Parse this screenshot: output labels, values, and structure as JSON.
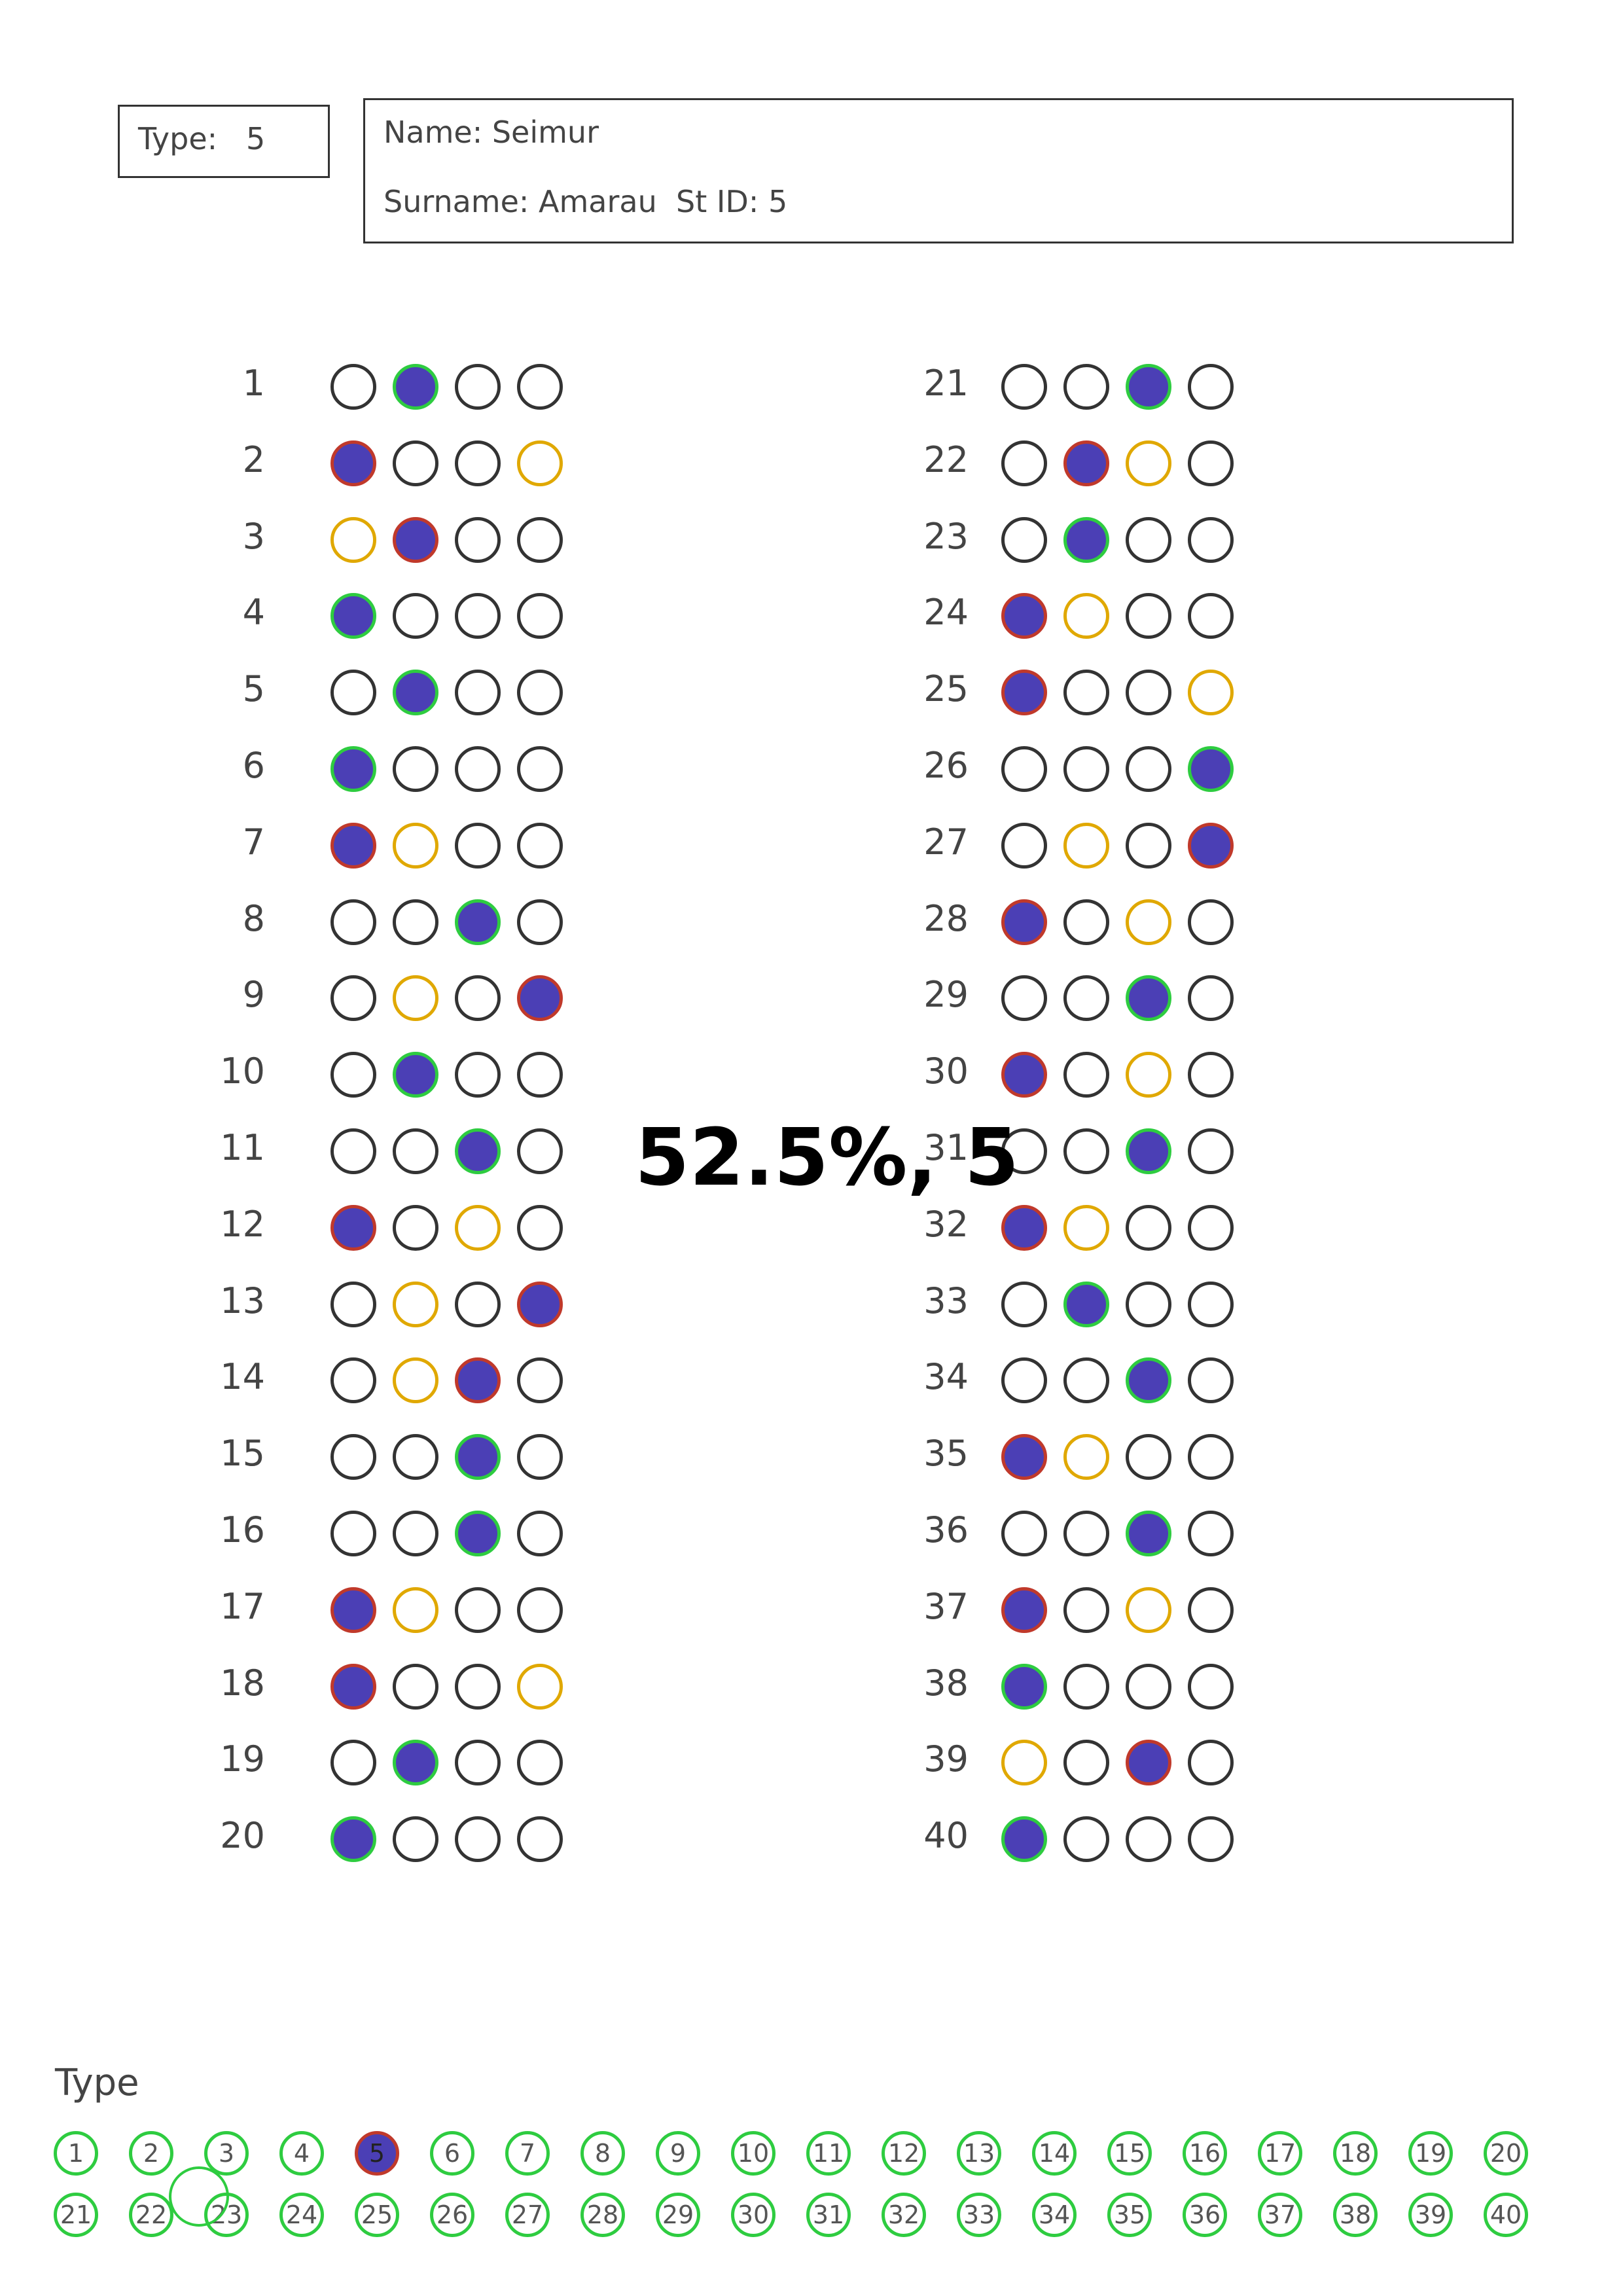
{
  "header": {
    "type_label": "Type:   5",
    "name_label": "Name: Seimur",
    "surname_label": "Surname: Amarau  St ID: 5"
  },
  "score_text": "52.5%, 5",
  "colors": {
    "fill": "#4b3fb5",
    "correct": "#2ecc40",
    "wrong": "#c0392b",
    "answer_key": "#e0a800",
    "empty": "#333333"
  },
  "questions": [
    {
      "number": "1",
      "selected": 2,
      "status": "correct"
    },
    {
      "number": "2",
      "selected": 1,
      "status": "wrong",
      "correct": 4
    },
    {
      "number": "3",
      "selected": 2,
      "status": "wrong",
      "correct": 1
    },
    {
      "number": "4",
      "selected": 1,
      "status": "correct"
    },
    {
      "number": "5",
      "selected": 2,
      "status": "correct"
    },
    {
      "number": "6",
      "selected": 1,
      "status": "correct"
    },
    {
      "number": "7",
      "selected": 1,
      "status": "wrong",
      "correct": 2
    },
    {
      "number": "8",
      "selected": 3,
      "status": "correct"
    },
    {
      "number": "9",
      "selected": 4,
      "status": "wrong",
      "correct": 2
    },
    {
      "number": "10",
      "selected": 2,
      "status": "correct"
    },
    {
      "number": "11",
      "selected": 3,
      "status": "correct"
    },
    {
      "number": "12",
      "selected": 1,
      "status": "wrong",
      "correct": 3
    },
    {
      "number": "13",
      "selected": 4,
      "status": "wrong",
      "correct": 2
    },
    {
      "number": "14",
      "selected": 3,
      "status": "wrong",
      "correct": 2
    },
    {
      "number": "15",
      "selected": 3,
      "status": "correct"
    },
    {
      "number": "16",
      "selected": 3,
      "status": "correct"
    },
    {
      "number": "17",
      "selected": 1,
      "status": "wrong",
      "correct": 2
    },
    {
      "number": "18",
      "selected": 1,
      "status": "wrong",
      "correct": 4
    },
    {
      "number": "19",
      "selected": 2,
      "status": "correct"
    },
    {
      "number": "20",
      "selected": 1,
      "status": "correct"
    },
    {
      "number": "21",
      "selected": 3,
      "status": "correct"
    },
    {
      "number": "22",
      "selected": 2,
      "status": "wrong",
      "correct": 3
    },
    {
      "number": "23",
      "selected": 2,
      "status": "correct"
    },
    {
      "number": "24",
      "selected": 1,
      "status": "wrong",
      "correct": 2
    },
    {
      "number": "25",
      "selected": 1,
      "status": "wrong",
      "correct": 4
    },
    {
      "number": "26",
      "selected": 4,
      "status": "correct"
    },
    {
      "number": "27",
      "selected": 4,
      "status": "wrong",
      "correct": 2
    },
    {
      "number": "28",
      "selected": 1,
      "status": "wrong",
      "correct": 3
    },
    {
      "number": "29",
      "selected": 3,
      "status": "correct"
    },
    {
      "number": "30",
      "selected": 1,
      "status": "wrong",
      "correct": 3
    },
    {
      "number": "31",
      "selected": 3,
      "status": "correct"
    },
    {
      "number": "32",
      "selected": 1,
      "status": "wrong",
      "correct": 2
    },
    {
      "number": "33",
      "selected": 2,
      "status": "correct"
    },
    {
      "number": "34",
      "selected": 3,
      "status": "correct"
    },
    {
      "number": "35",
      "selected": 1,
      "status": "wrong",
      "correct": 2
    },
    {
      "number": "36",
      "selected": 3,
      "status": "correct"
    },
    {
      "number": "37",
      "selected": 1,
      "status": "wrong",
      "correct": 3
    },
    {
      "number": "38",
      "selected": 1,
      "status": "correct"
    },
    {
      "number": "39",
      "selected": 3,
      "status": "wrong",
      "correct": 1
    },
    {
      "number": "40",
      "selected": 1,
      "status": "correct"
    }
  ],
  "type_section": {
    "title": "Type",
    "selected": "5",
    "options": [
      "1",
      "2",
      "3",
      "4",
      "5",
      "6",
      "7",
      "8",
      "9",
      "10",
      "11",
      "12",
      "13",
      "14",
      "15",
      "16",
      "17",
      "18",
      "19",
      "20",
      "21",
      "22",
      "23",
      "24",
      "25",
      "26",
      "27",
      "28",
      "29",
      "30",
      "31",
      "32",
      "33",
      "34",
      "35",
      "36",
      "37",
      "38",
      "39",
      "40"
    ]
  }
}
